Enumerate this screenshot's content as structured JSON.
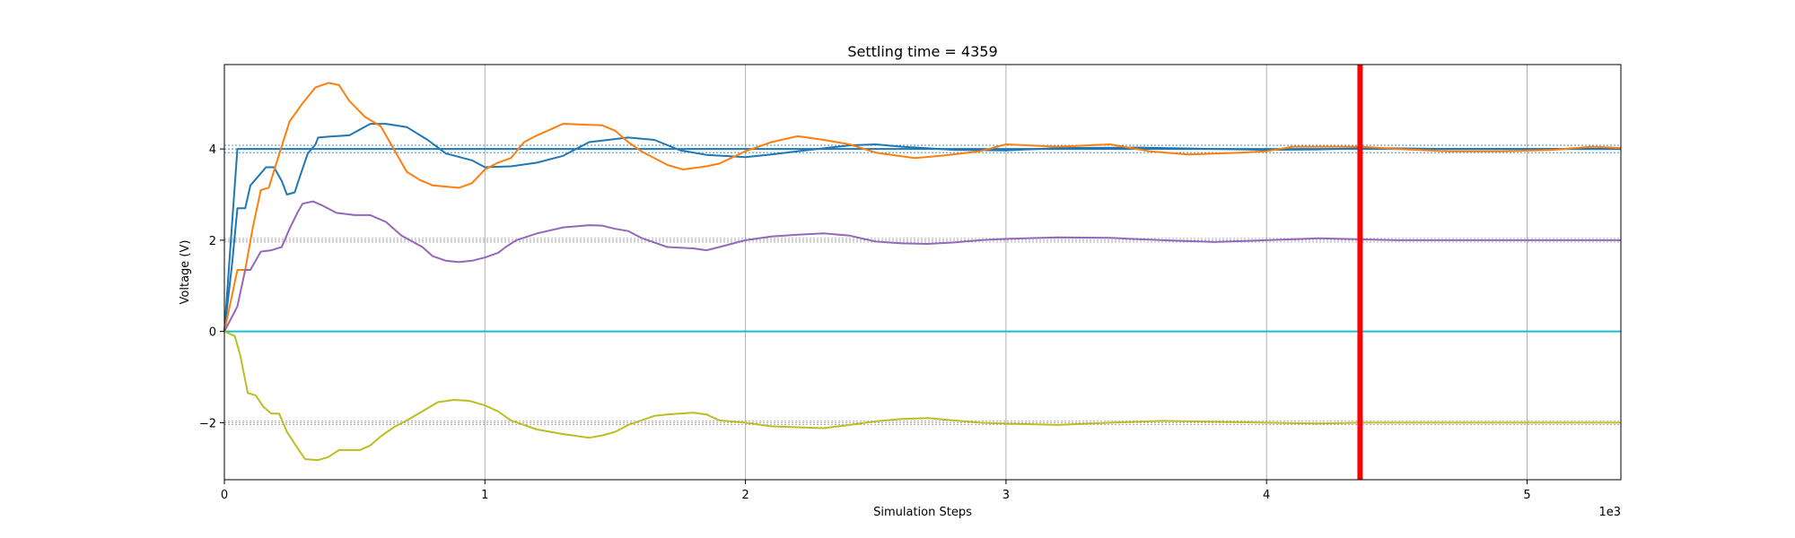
{
  "chart_data": {
    "type": "line",
    "title": "Settling time = 4359",
    "xlabel": "Simulation Steps",
    "ylabel": "Voltage (V)",
    "x_offset_label": "1e3",
    "xlim": [
      0,
      5360
    ],
    "ylim": [
      -3.25,
      5.85
    ],
    "xticks": [
      0,
      1000,
      2000,
      3000,
      4000,
      5000
    ],
    "xtick_labels": [
      "0",
      "1",
      "2",
      "3",
      "4",
      "5"
    ],
    "yticks": [
      -2,
      0,
      2,
      4
    ],
    "ytick_labels": [
      "−2",
      "0",
      "2",
      "4"
    ],
    "grid": true,
    "settling_line": {
      "x": 4359,
      "color": "#ff0000"
    },
    "reference_bands": [
      {
        "center": 4,
        "tolerance": 0.08,
        "color": "#1f77b4"
      },
      {
        "center": 2,
        "tolerance": 0.04,
        "color": "#999999"
      },
      {
        "center": -2,
        "tolerance": 0.04,
        "color": "#999999"
      }
    ],
    "series": [
      {
        "color": "#1f77b4",
        "points": [
          [
            0,
            0
          ],
          [
            50,
            4
          ],
          [
            100,
            4
          ],
          [
            200,
            4
          ],
          [
            400,
            4
          ],
          [
            600,
            4
          ],
          [
            800,
            4
          ],
          [
            1000,
            4
          ],
          [
            1500,
            4
          ],
          [
            2000,
            4
          ],
          [
            3000,
            4
          ],
          [
            4000,
            4
          ],
          [
            5000,
            4
          ],
          [
            5360,
            4
          ]
        ],
        "comment_free": true
      },
      {
        "color": "#1f77b4",
        "points": [
          [
            0,
            0
          ],
          [
            30,
            1.5
          ],
          [
            50,
            2.7
          ],
          [
            80,
            2.7
          ],
          [
            100,
            3.2
          ],
          [
            130,
            3.4
          ],
          [
            160,
            3.6
          ],
          [
            190,
            3.6
          ],
          [
            220,
            3.3
          ],
          [
            240,
            3.0
          ],
          [
            270,
            3.05
          ],
          [
            290,
            3.4
          ],
          [
            320,
            3.9
          ],
          [
            350,
            4.1
          ],
          [
            360,
            4.25
          ],
          [
            400,
            4.27
          ],
          [
            480,
            4.3
          ],
          [
            560,
            4.55
          ],
          [
            620,
            4.55
          ],
          [
            700,
            4.48
          ],
          [
            780,
            4.2
          ],
          [
            850,
            3.9
          ],
          [
            950,
            3.75
          ],
          [
            1000,
            3.6
          ],
          [
            1100,
            3.62
          ],
          [
            1200,
            3.7
          ],
          [
            1300,
            3.85
          ],
          [
            1400,
            4.15
          ],
          [
            1550,
            4.25
          ],
          [
            1650,
            4.2
          ],
          [
            1750,
            3.97
          ],
          [
            1850,
            3.87
          ],
          [
            2000,
            3.82
          ],
          [
            2100,
            3.88
          ],
          [
            2200,
            3.95
          ],
          [
            2400,
            4.08
          ],
          [
            2500,
            4.1
          ],
          [
            2600,
            4.05
          ],
          [
            2800,
            3.98
          ],
          [
            3000,
            3.97
          ],
          [
            3200,
            4.02
          ],
          [
            3500,
            4.03
          ],
          [
            3800,
            4.0
          ],
          [
            4000,
            3.98
          ],
          [
            4200,
            3.99
          ],
          [
            4400,
            4.02
          ],
          [
            4700,
            4.0
          ],
          [
            5000,
            4.0
          ],
          [
            5360,
            4.0
          ]
        ]
      },
      {
        "color": "#ff7f0e",
        "points": [
          [
            0,
            0
          ],
          [
            50,
            1.35
          ],
          [
            80,
            1.35
          ],
          [
            110,
            2.3
          ],
          [
            140,
            3.1
          ],
          [
            170,
            3.15
          ],
          [
            200,
            3.7
          ],
          [
            250,
            4.6
          ],
          [
            300,
            5.0
          ],
          [
            350,
            5.35
          ],
          [
            400,
            5.45
          ],
          [
            440,
            5.4
          ],
          [
            480,
            5.05
          ],
          [
            540,
            4.7
          ],
          [
            600,
            4.5
          ],
          [
            650,
            4.0
          ],
          [
            700,
            3.5
          ],
          [
            750,
            3.32
          ],
          [
            800,
            3.2
          ],
          [
            900,
            3.15
          ],
          [
            950,
            3.25
          ],
          [
            1000,
            3.55
          ],
          [
            1050,
            3.7
          ],
          [
            1100,
            3.8
          ],
          [
            1150,
            4.15
          ],
          [
            1200,
            4.3
          ],
          [
            1300,
            4.55
          ],
          [
            1450,
            4.52
          ],
          [
            1500,
            4.4
          ],
          [
            1550,
            4.15
          ],
          [
            1600,
            3.95
          ],
          [
            1700,
            3.65
          ],
          [
            1760,
            3.55
          ],
          [
            1850,
            3.62
          ],
          [
            1900,
            3.68
          ],
          [
            2000,
            3.95
          ],
          [
            2100,
            4.15
          ],
          [
            2200,
            4.28
          ],
          [
            2300,
            4.2
          ],
          [
            2400,
            4.1
          ],
          [
            2500,
            3.92
          ],
          [
            2650,
            3.8
          ],
          [
            2750,
            3.85
          ],
          [
            2900,
            3.95
          ],
          [
            3000,
            4.1
          ],
          [
            3200,
            4.05
          ],
          [
            3400,
            4.1
          ],
          [
            3550,
            3.95
          ],
          [
            3700,
            3.88
          ],
          [
            3900,
            3.92
          ],
          [
            4000,
            3.95
          ],
          [
            4100,
            4.05
          ],
          [
            4250,
            4.05
          ],
          [
            4359,
            4.05
          ],
          [
            4500,
            4.0
          ],
          [
            4700,
            3.95
          ],
          [
            4900,
            3.95
          ],
          [
            5100,
            3.98
          ],
          [
            5250,
            4.05
          ],
          [
            5360,
            4.02
          ]
        ]
      },
      {
        "color": "#9467bd",
        "points": [
          [
            0,
            0
          ],
          [
            50,
            0.55
          ],
          [
            80,
            1.35
          ],
          [
            100,
            1.35
          ],
          [
            140,
            1.75
          ],
          [
            180,
            1.78
          ],
          [
            220,
            1.85
          ],
          [
            250,
            2.25
          ],
          [
            280,
            2.6
          ],
          [
            300,
            2.8
          ],
          [
            340,
            2.85
          ],
          [
            380,
            2.75
          ],
          [
            430,
            2.6
          ],
          [
            500,
            2.55
          ],
          [
            560,
            2.55
          ],
          [
            620,
            2.4
          ],
          [
            680,
            2.1
          ],
          [
            760,
            1.85
          ],
          [
            800,
            1.65
          ],
          [
            850,
            1.55
          ],
          [
            900,
            1.52
          ],
          [
            950,
            1.55
          ],
          [
            1000,
            1.62
          ],
          [
            1050,
            1.72
          ],
          [
            1080,
            1.85
          ],
          [
            1120,
            2.0
          ],
          [
            1200,
            2.15
          ],
          [
            1300,
            2.28
          ],
          [
            1400,
            2.33
          ],
          [
            1450,
            2.32
          ],
          [
            1500,
            2.25
          ],
          [
            1550,
            2.2
          ],
          [
            1600,
            2.05
          ],
          [
            1650,
            1.95
          ],
          [
            1700,
            1.85
          ],
          [
            1800,
            1.82
          ],
          [
            1850,
            1.78
          ],
          [
            1900,
            1.85
          ],
          [
            2000,
            2.0
          ],
          [
            2100,
            2.08
          ],
          [
            2200,
            2.12
          ],
          [
            2300,
            2.15
          ],
          [
            2400,
            2.1
          ],
          [
            2500,
            1.97
          ],
          [
            2600,
            1.93
          ],
          [
            2700,
            1.92
          ],
          [
            2800,
            1.95
          ],
          [
            2900,
            2.0
          ],
          [
            3000,
            2.03
          ],
          [
            3200,
            2.06
          ],
          [
            3400,
            2.05
          ],
          [
            3600,
            2.0
          ],
          [
            3800,
            1.96
          ],
          [
            4000,
            2.0
          ],
          [
            4200,
            2.04
          ],
          [
            4359,
            2.02
          ],
          [
            4500,
            2.0
          ],
          [
            4800,
            2.0
          ],
          [
            5100,
            2.0
          ],
          [
            5360,
            2.0
          ]
        ]
      },
      {
        "color": "#17becf",
        "points": [
          [
            0,
            0
          ],
          [
            5360,
            0
          ]
        ]
      },
      {
        "color": "#bcbd22",
        "points": [
          [
            0,
            0
          ],
          [
            40,
            -0.1
          ],
          [
            60,
            -0.5
          ],
          [
            90,
            -1.35
          ],
          [
            120,
            -1.4
          ],
          [
            150,
            -1.65
          ],
          [
            180,
            -1.8
          ],
          [
            210,
            -1.8
          ],
          [
            240,
            -2.2
          ],
          [
            280,
            -2.55
          ],
          [
            310,
            -2.8
          ],
          [
            360,
            -2.82
          ],
          [
            400,
            -2.75
          ],
          [
            440,
            -2.6
          ],
          [
            520,
            -2.6
          ],
          [
            560,
            -2.5
          ],
          [
            600,
            -2.3
          ],
          [
            650,
            -2.1
          ],
          [
            700,
            -1.95
          ],
          [
            760,
            -1.75
          ],
          [
            820,
            -1.55
          ],
          [
            880,
            -1.5
          ],
          [
            940,
            -1.52
          ],
          [
            1000,
            -1.62
          ],
          [
            1050,
            -1.75
          ],
          [
            1100,
            -1.95
          ],
          [
            1200,
            -2.15
          ],
          [
            1300,
            -2.25
          ],
          [
            1400,
            -2.33
          ],
          [
            1450,
            -2.28
          ],
          [
            1500,
            -2.2
          ],
          [
            1550,
            -2.05
          ],
          [
            1600,
            -1.95
          ],
          [
            1650,
            -1.85
          ],
          [
            1700,
            -1.82
          ],
          [
            1800,
            -1.78
          ],
          [
            1850,
            -1.82
          ],
          [
            1900,
            -1.95
          ],
          [
            2000,
            -2.0
          ],
          [
            2100,
            -2.08
          ],
          [
            2200,
            -2.1
          ],
          [
            2300,
            -2.12
          ],
          [
            2400,
            -2.05
          ],
          [
            2500,
            -1.97
          ],
          [
            2600,
            -1.92
          ],
          [
            2700,
            -1.9
          ],
          [
            2800,
            -1.95
          ],
          [
            2900,
            -2.0
          ],
          [
            3000,
            -2.02
          ],
          [
            3200,
            -2.05
          ],
          [
            3400,
            -2.0
          ],
          [
            3600,
            -1.96
          ],
          [
            3800,
            -1.98
          ],
          [
            4000,
            -2.0
          ],
          [
            4200,
            -2.02
          ],
          [
            4359,
            -2.0
          ],
          [
            4600,
            -2.0
          ],
          [
            4900,
            -2.0
          ],
          [
            5100,
            -2.0
          ],
          [
            5360,
            -2.0
          ]
        ]
      }
    ]
  }
}
